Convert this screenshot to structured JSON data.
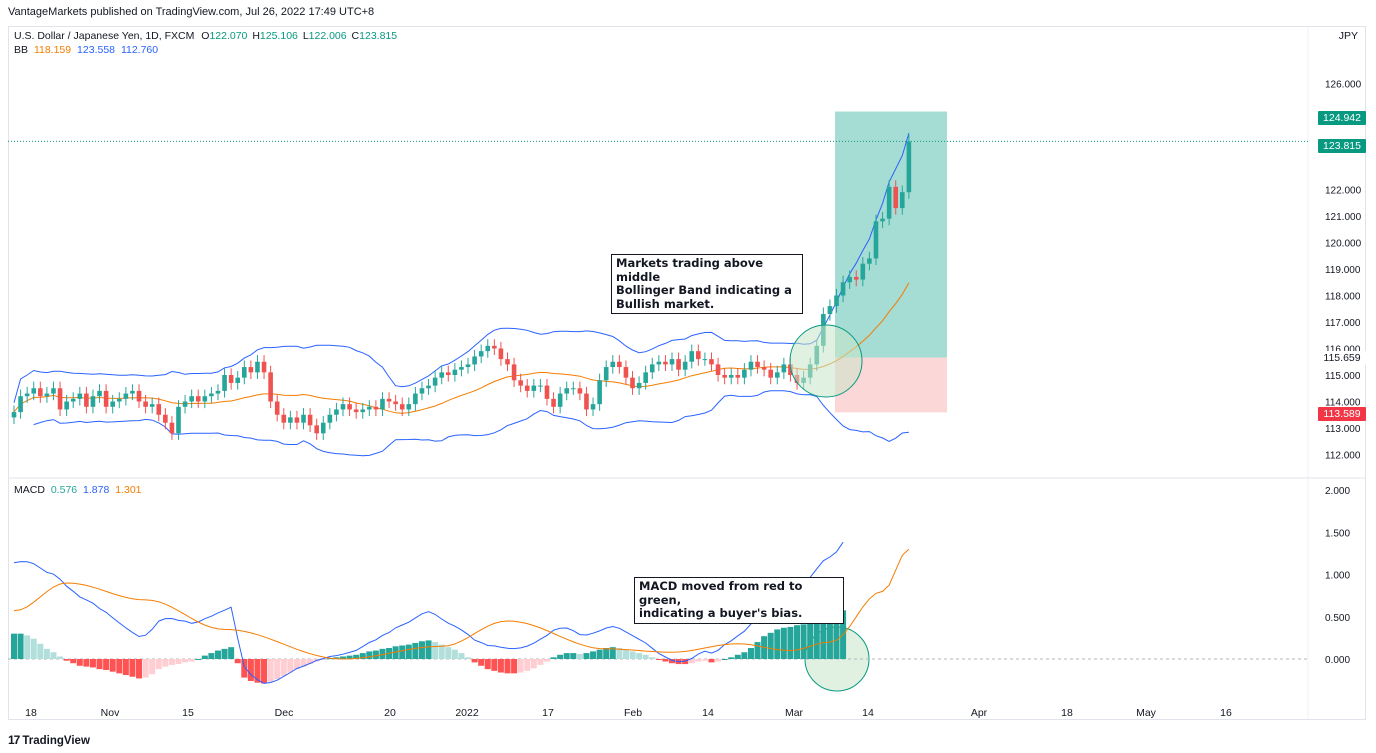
{
  "header": {
    "published": "VantageMarkets published on TradingView.com, Jul 26, 2022 17:49 UTC+8",
    "symbol": "U.S. Dollar / Japanese Yen, 1D, FXCM",
    "ohlc": {
      "o_label": "O",
      "o": "122.070",
      "h_label": "H",
      "h": "125.106",
      "l_label": "L",
      "l": "122.006",
      "c_label": "C",
      "c": "123.815"
    },
    "currency": "JPY"
  },
  "bb_legend": {
    "label": "BB",
    "middle": "118.159",
    "upper": "123.558",
    "lower": "112.760"
  },
  "macd_legend": {
    "label": "MACD",
    "hist": "0.576",
    "macd": "1.878",
    "signal": "1.301"
  },
  "price_tags": {
    "target": "124.942",
    "current": "123.815",
    "entry": "115.659",
    "stop": "113.589"
  },
  "annotations": {
    "bb_note": "Markets trading above middle\nBollinger Band indicating a\nBullish market.",
    "macd_note": "MACD moved from red to green,\nindicating a buyer's bias."
  },
  "footer": {
    "logo_text": "TradingView",
    "logo_mark": "17"
  },
  "colors": {
    "up": "#26a69a",
    "down": "#ef5350",
    "bb_band": "#2962ff",
    "bb_mid": "#f57c00",
    "macd_line": "#2962ff",
    "signal_line": "#f57c00",
    "profit_zone": "#8fd3c9",
    "loss_zone": "#fcd3d3",
    "hist_up_strong": "#26a69a",
    "hist_up_weak": "#b2dfdb",
    "hist_down_strong": "#ff5252",
    "hist_down_weak": "#ffcdd2"
  },
  "chart_data": [
    {
      "type": "candlestick",
      "title": "U.S. Dollar / Japanese Yen, 1D, FXCM",
      "ylim": [
        111.3,
        128.4
      ],
      "y_ticks": [
        "112.000",
        "113.000",
        "114.000",
        "115.000",
        "116.000",
        "117.000",
        "118.000",
        "119.000",
        "120.000",
        "121.000",
        "122.000",
        "126.000"
      ],
      "x_ticks": [
        "18",
        "Nov",
        "15",
        "Dec",
        "20",
        "2022",
        "17",
        "Feb",
        "14",
        "Mar",
        "14",
        "Apr",
        "18",
        "May",
        "16"
      ],
      "close": [
        113.6,
        114.2,
        114.3,
        114.5,
        114.2,
        114.3,
        114.5,
        113.7,
        114.0,
        114.1,
        114.3,
        113.8,
        114.2,
        114.4,
        113.8,
        114.0,
        114.1,
        114.3,
        114.4,
        114.0,
        113.8,
        113.9,
        113.5,
        113.2,
        112.8,
        113.8,
        114.0,
        114.2,
        114.0,
        114.2,
        114.3,
        114.4,
        115.0,
        114.7,
        114.9,
        115.3,
        115.1,
        115.5,
        115.1,
        114.0,
        113.5,
        113.2,
        113.4,
        113.2,
        113.5,
        113.1,
        112.8,
        113.2,
        113.5,
        113.7,
        113.9,
        113.7,
        113.6,
        113.7,
        113.8,
        113.7,
        114.1,
        114.0,
        113.9,
        113.7,
        113.9,
        114.3,
        114.5,
        114.6,
        114.9,
        115.1,
        115.0,
        115.2,
        115.3,
        115.4,
        115.7,
        115.9,
        116.1,
        116.0,
        115.6,
        115.4,
        114.8,
        114.6,
        114.4,
        114.6,
        114.6,
        114.1,
        113.8,
        114.3,
        114.5,
        114.5,
        114.3,
        113.7,
        113.9,
        114.8,
        115.3,
        115.5,
        115.3,
        114.9,
        114.5,
        114.7,
        115.1,
        115.4,
        115.5,
        115.4,
        115.6,
        115.2,
        115.5,
        115.9,
        115.6,
        115.6,
        115.4,
        115.0,
        114.9,
        115.0,
        114.9,
        115.2,
        115.5,
        115.3,
        115.2,
        114.9,
        115.1,
        115.4,
        115.0,
        114.7,
        114.9,
        115.4,
        116.1,
        117.3,
        117.6,
        118.0,
        118.5,
        118.7,
        118.6,
        119.2,
        119.4,
        120.8,
        120.9,
        122.1,
        121.3,
        121.9,
        123.815
      ],
      "highs_lows_note": "wick ranges approximated around close",
      "bb_upper_last": 123.558,
      "bb_middle_last": 118.159,
      "bb_lower_last": 112.76,
      "position": {
        "target": 124.942,
        "entry": 115.659,
        "stop": 113.589
      }
    },
    {
      "type": "bar",
      "title": "MACD",
      "ylim": [
        -0.45,
        2.1
      ],
      "y_ticks": [
        "0.000",
        "0.500",
        "1.000",
        "1.500",
        "2.000"
      ],
      "histogram": [
        0.3,
        0.3,
        0.28,
        0.24,
        0.18,
        0.12,
        0.08,
        0.03,
        -0.02,
        -0.05,
        -0.08,
        -0.09,
        -0.1,
        -0.12,
        -0.13,
        -0.15,
        -0.17,
        -0.19,
        -0.21,
        -0.23,
        -0.22,
        -0.18,
        -0.12,
        -0.09,
        -0.07,
        -0.06,
        -0.04,
        -0.03,
        0.0,
        0.04,
        0.07,
        0.1,
        0.12,
        0.14,
        -0.05,
        -0.22,
        -0.26,
        -0.28,
        -0.29,
        -0.27,
        -0.24,
        -0.2,
        -0.16,
        -0.12,
        -0.09,
        -0.06,
        -0.03,
        -0.01,
        0.01,
        0.02,
        0.03,
        0.04,
        0.05,
        0.07,
        0.09,
        0.1,
        0.12,
        0.13,
        0.15,
        0.16,
        0.17,
        0.19,
        0.21,
        0.22,
        0.2,
        0.17,
        0.14,
        0.11,
        0.07,
        0.02,
        -0.04,
        -0.08,
        -0.12,
        -0.14,
        -0.16,
        -0.17,
        -0.17,
        -0.16,
        -0.14,
        -0.11,
        -0.07,
        -0.03,
        0.02,
        0.05,
        0.07,
        0.07,
        0.06,
        0.07,
        0.09,
        0.11,
        0.13,
        0.14,
        0.13,
        0.11,
        0.09,
        0.07,
        0.05,
        0.02,
        -0.01,
        -0.03,
        -0.05,
        -0.06,
        -0.06,
        -0.05,
        -0.03,
        -0.02,
        -0.04,
        -0.03,
        0.0,
        0.02,
        0.05,
        0.08,
        0.13,
        0.2,
        0.27,
        0.31,
        0.35,
        0.37,
        0.38,
        0.4,
        0.41,
        0.43,
        0.47,
        0.51,
        0.53,
        0.55,
        0.576
      ],
      "macd_last": 1.878,
      "signal_last": 1.301
    }
  ]
}
